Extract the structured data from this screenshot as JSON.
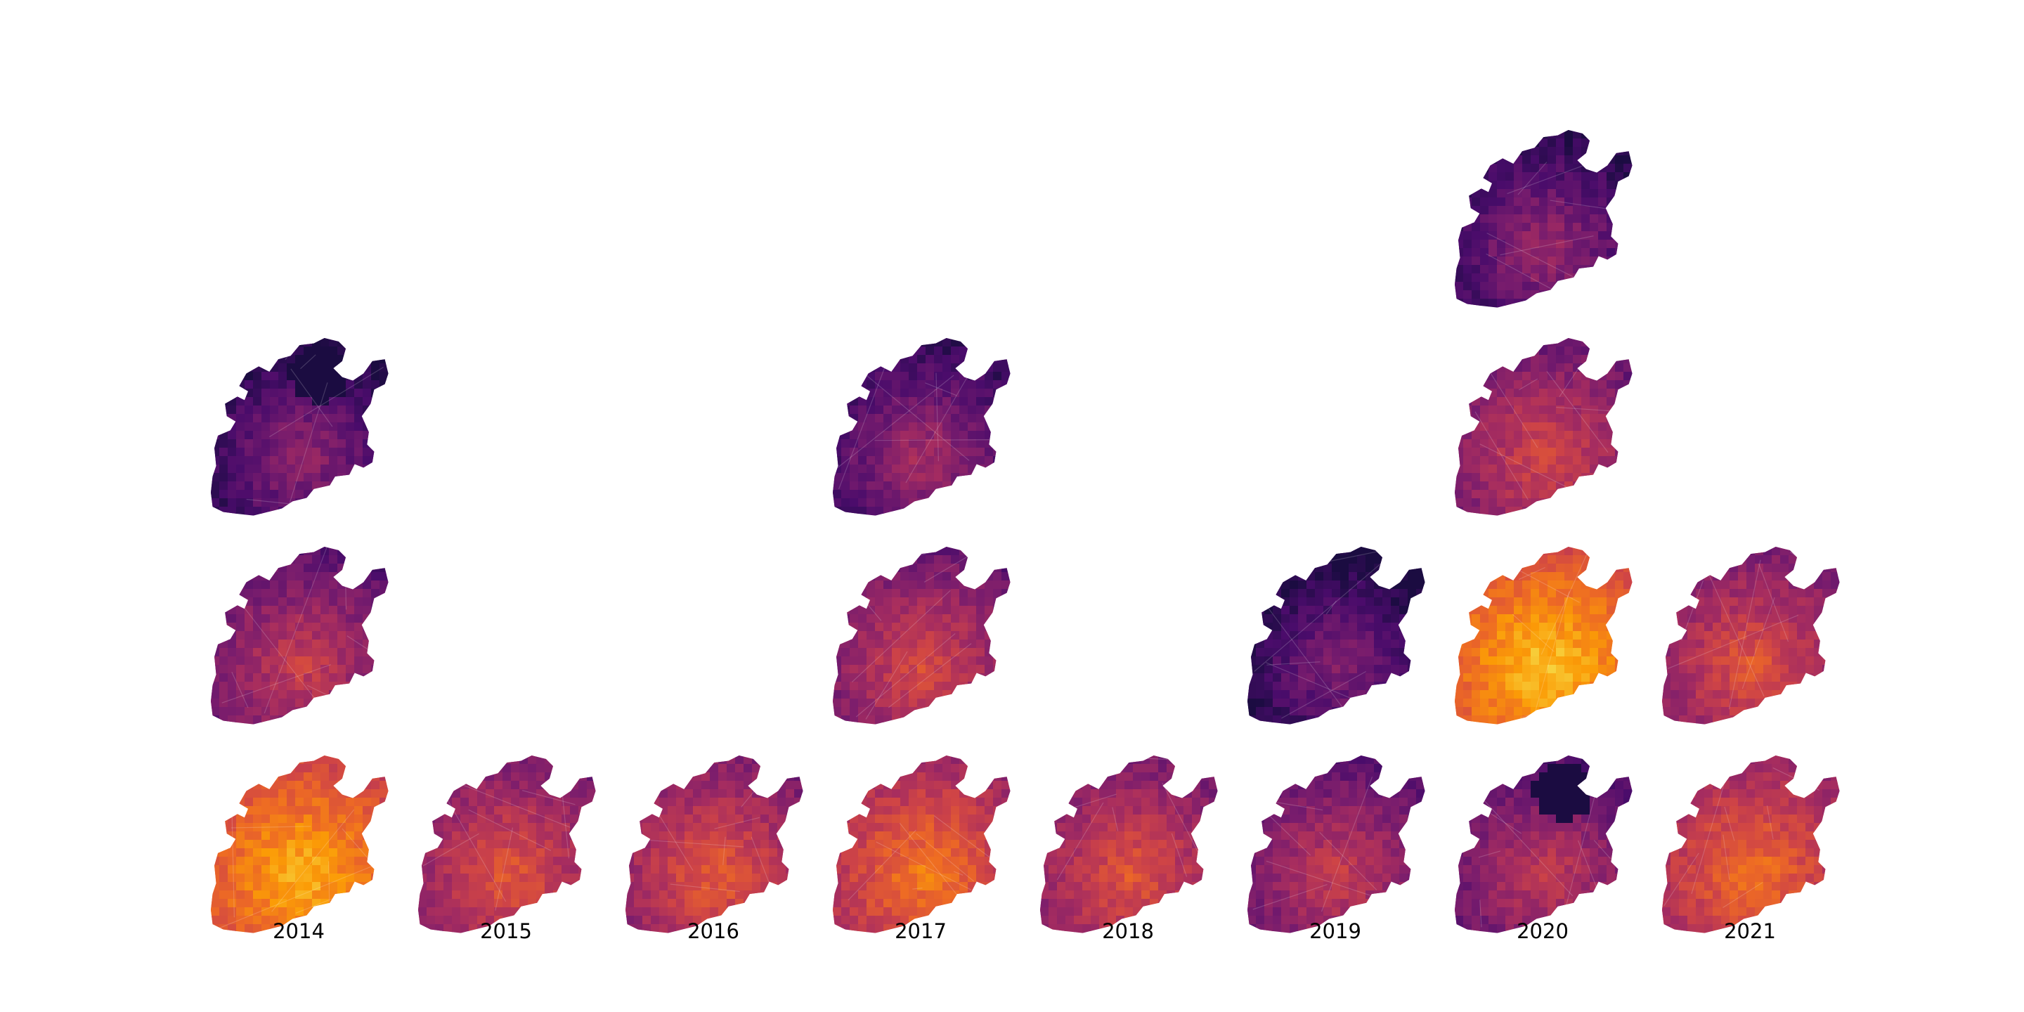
{
  "figure": {
    "type": "small-multiples-choropleth",
    "columns": [
      {
        "year": "2014",
        "maps": [
          {
            "tone": 0.78
          },
          {
            "tone": 0.4
          },
          {
            "tone": 0.22,
            "dark_patch": true
          }
        ]
      },
      {
        "year": "2015",
        "maps": [
          {
            "tone": 0.5
          }
        ]
      },
      {
        "year": "2016",
        "maps": [
          {
            "tone": 0.52
          }
        ]
      },
      {
        "year": "2017",
        "maps": [
          {
            "tone": 0.62
          },
          {
            "tone": 0.45
          },
          {
            "tone": 0.28
          }
        ]
      },
      {
        "year": "2018",
        "maps": [
          {
            "tone": 0.5
          }
        ]
      },
      {
        "year": "2019",
        "maps": [
          {
            "tone": 0.4
          },
          {
            "tone": 0.18
          }
        ]
      },
      {
        "year": "2020",
        "maps": [
          {
            "tone": 0.38,
            "dark_patch": true
          },
          {
            "tone": 0.82
          },
          {
            "tone": 0.45
          },
          {
            "tone": 0.25
          }
        ]
      },
      {
        "year": "2021",
        "maps": [
          {
            "tone": 0.6
          },
          {
            "tone": 0.5
          }
        ]
      }
    ],
    "colormap": [
      "#1b0c41",
      "#4a0c6b",
      "#781c6d",
      "#a52c60",
      "#cf4446",
      "#ed6925",
      "#fb9b06",
      "#f7d13d"
    ]
  }
}
